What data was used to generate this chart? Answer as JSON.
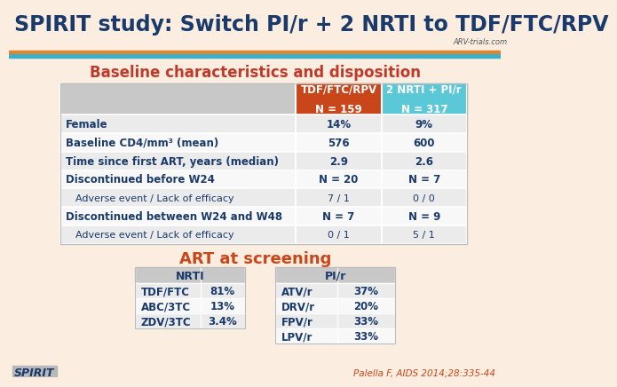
{
  "title": "SPIRIT study: Switch PI/r + 2 NRTI to TDF/FTC/RPV",
  "title_color": "#1a3a6b",
  "subtitle": "Baseline characteristics and disposition",
  "subtitle_color": "#c0392b",
  "bg_color": "#fbeee0",
  "header_bar_color1": "#c9461a",
  "header_bar_color2": "#5bc8d8",
  "header1_line1": "TDF/FTC/RPV",
  "header1_line2": "N = 159",
  "header2_line1": "2 NRTI + PI/r",
  "header2_line2": "N = 317",
  "table_rows": [
    [
      "Female",
      "14%",
      "9%",
      true
    ],
    [
      "Baseline CD4/mm³ (mean)",
      "576",
      "600",
      true
    ],
    [
      "Time since first ART, years (median)",
      "2.9",
      "2.6",
      true
    ],
    [
      "Discontinued before W24",
      "N = 20",
      "N = 7",
      true
    ],
    [
      "Adverse event / Lack of efficacy",
      "7 / 1",
      "0 / 0",
      false
    ],
    [
      "Discontinued between W24 and W48",
      "N = 7",
      "N = 9",
      true
    ],
    [
      "Adverse event / Lack of efficacy",
      "0 / 1",
      "5 / 1",
      false
    ]
  ],
  "art_title": "ART at screening",
  "art_title_color": "#c9461a",
  "nrti_header": "NRTI",
  "pir_header": "PI/r",
  "nrti_data": [
    [
      "TDF/FTC",
      "81%"
    ],
    [
      "ABC/3TC",
      "13%"
    ],
    [
      "ZDV/3TC",
      "3.4%"
    ]
  ],
  "pir_data": [
    [
      "ATV/r",
      "37%"
    ],
    [
      "DRV/r",
      "20%"
    ],
    [
      "FPV/r",
      "33%"
    ],
    [
      "LPV/r",
      "33%"
    ]
  ],
  "footer_left": "SPIRIT",
  "footer_right": "Palella F, AIDS 2014;28:335-44",
  "footer_right_color": "#c9461a",
  "table_label_color": "#1a3a6b",
  "table_data_color": "#1a3a6b",
  "orange_bar_color": "#e8832a",
  "blue_bar_color": "#3db0c8",
  "table_bg_even": "#ebebeb",
  "table_bg_odd": "#f8f8f8",
  "table_header_left_color": "#c8c8c8",
  "table_border_color": "#bbbbbb"
}
